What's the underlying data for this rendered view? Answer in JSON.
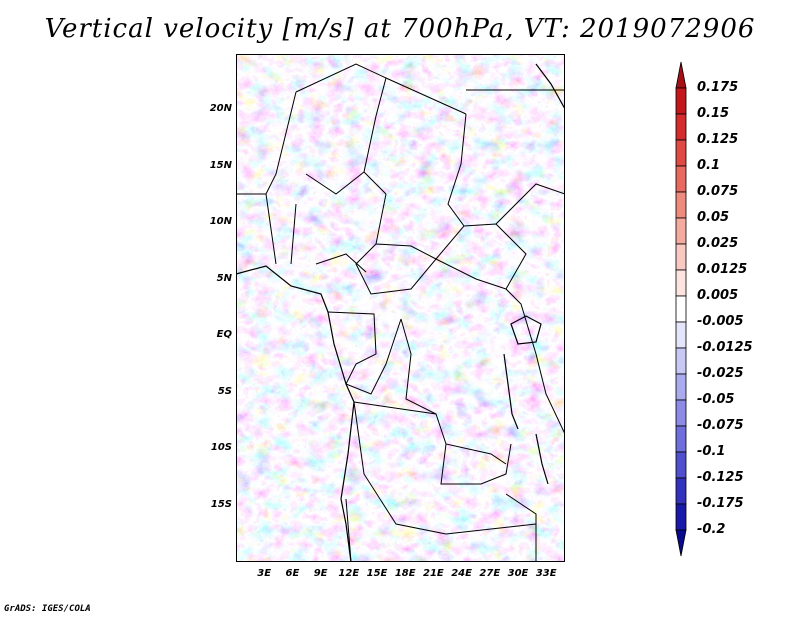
{
  "title": "Vertical velocity [m/s] at 700hPa, VT: 2019072906",
  "credit": "GrADS: IGES/COLA",
  "map": {
    "lon_range": [
      0,
      35
    ],
    "lat_range": [
      -20,
      25
    ],
    "lat_ticks": [
      {
        "label": "20N",
        "value": 20
      },
      {
        "label": "15N",
        "value": 15
      },
      {
        "label": "10N",
        "value": 10
      },
      {
        "label": "5N",
        "value": 5
      },
      {
        "label": "EQ",
        "value": 0
      },
      {
        "label": "5S",
        "value": -5
      },
      {
        "label": "10S",
        "value": -10
      },
      {
        "label": "15S",
        "value": -15
      }
    ],
    "lon_ticks": [
      {
        "label": "3E",
        "value": 3
      },
      {
        "label": "6E",
        "value": 6
      },
      {
        "label": "9E",
        "value": 9
      },
      {
        "label": "12E",
        "value": 12
      },
      {
        "label": "15E",
        "value": 15
      },
      {
        "label": "18E",
        "value": 18
      },
      {
        "label": "21E",
        "value": 21
      },
      {
        "label": "24E",
        "value": 24
      },
      {
        "label": "27E",
        "value": 27
      },
      {
        "label": "30E",
        "value": 30
      },
      {
        "label": "33E",
        "value": 33
      }
    ]
  },
  "colorbar": {
    "levels": [
      "0.175",
      "0.15",
      "0.125",
      "0.1",
      "0.075",
      "0.05",
      "0.025",
      "0.0125",
      "0.005",
      "-0.005",
      "-0.0125",
      "-0.025",
      "-0.05",
      "-0.075",
      "-0.1",
      "-0.125",
      "-0.175",
      "-0.2"
    ],
    "colors": [
      "#a50f15",
      "#c3171c",
      "#d42b2b",
      "#e04a44",
      "#e8695f",
      "#ef8a7f",
      "#f5aaa0",
      "#f9c8c0",
      "#fde4df",
      "#ffffff",
      "#e4e4fb",
      "#c8c8f5",
      "#aaaaee",
      "#8c8ce6",
      "#6e6edc",
      "#5050cf",
      "#3232bf",
      "#1919aa",
      "#0a0a8c"
    ]
  }
}
